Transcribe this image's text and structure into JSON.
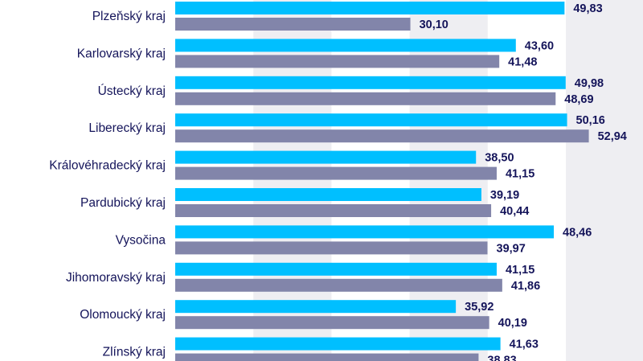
{
  "chart_data": {
    "type": "bar",
    "orientation": "horizontal",
    "categories": [
      "Plzeňský kraj",
      "Karlovarský kraj",
      "Ústecký kraj",
      "Liberecký kraj",
      "Královéhradecký kraj",
      "Pardubický kraj",
      "Vysočina",
      "Jihomoravský kraj",
      "Olomoucký kraj",
      "Zlínský kraj"
    ],
    "series": [
      {
        "color": "#00bfff",
        "values": [
          49.83,
          43.6,
          49.98,
          50.16,
          38.5,
          39.19,
          48.46,
          41.15,
          35.92,
          41.63
        ],
        "labels": [
          "49,83",
          "43,60",
          "49,98",
          "50,16",
          "38,50",
          "39,19",
          "48,46",
          "41,15",
          "35,92",
          "41,63"
        ]
      },
      {
        "color": "#8285aa",
        "values": [
          30.1,
          41.48,
          48.69,
          52.94,
          41.15,
          40.44,
          39.97,
          41.86,
          40.19,
          38.83
        ],
        "labels": [
          "30,10",
          "41,48",
          "48,69",
          "52,94",
          "41,15",
          "40,44",
          "39,97",
          "41,86",
          "40,19",
          "38,83"
        ]
      }
    ],
    "grid": true,
    "label_color": "#14145a",
    "band_color": "#eeeef2"
  }
}
